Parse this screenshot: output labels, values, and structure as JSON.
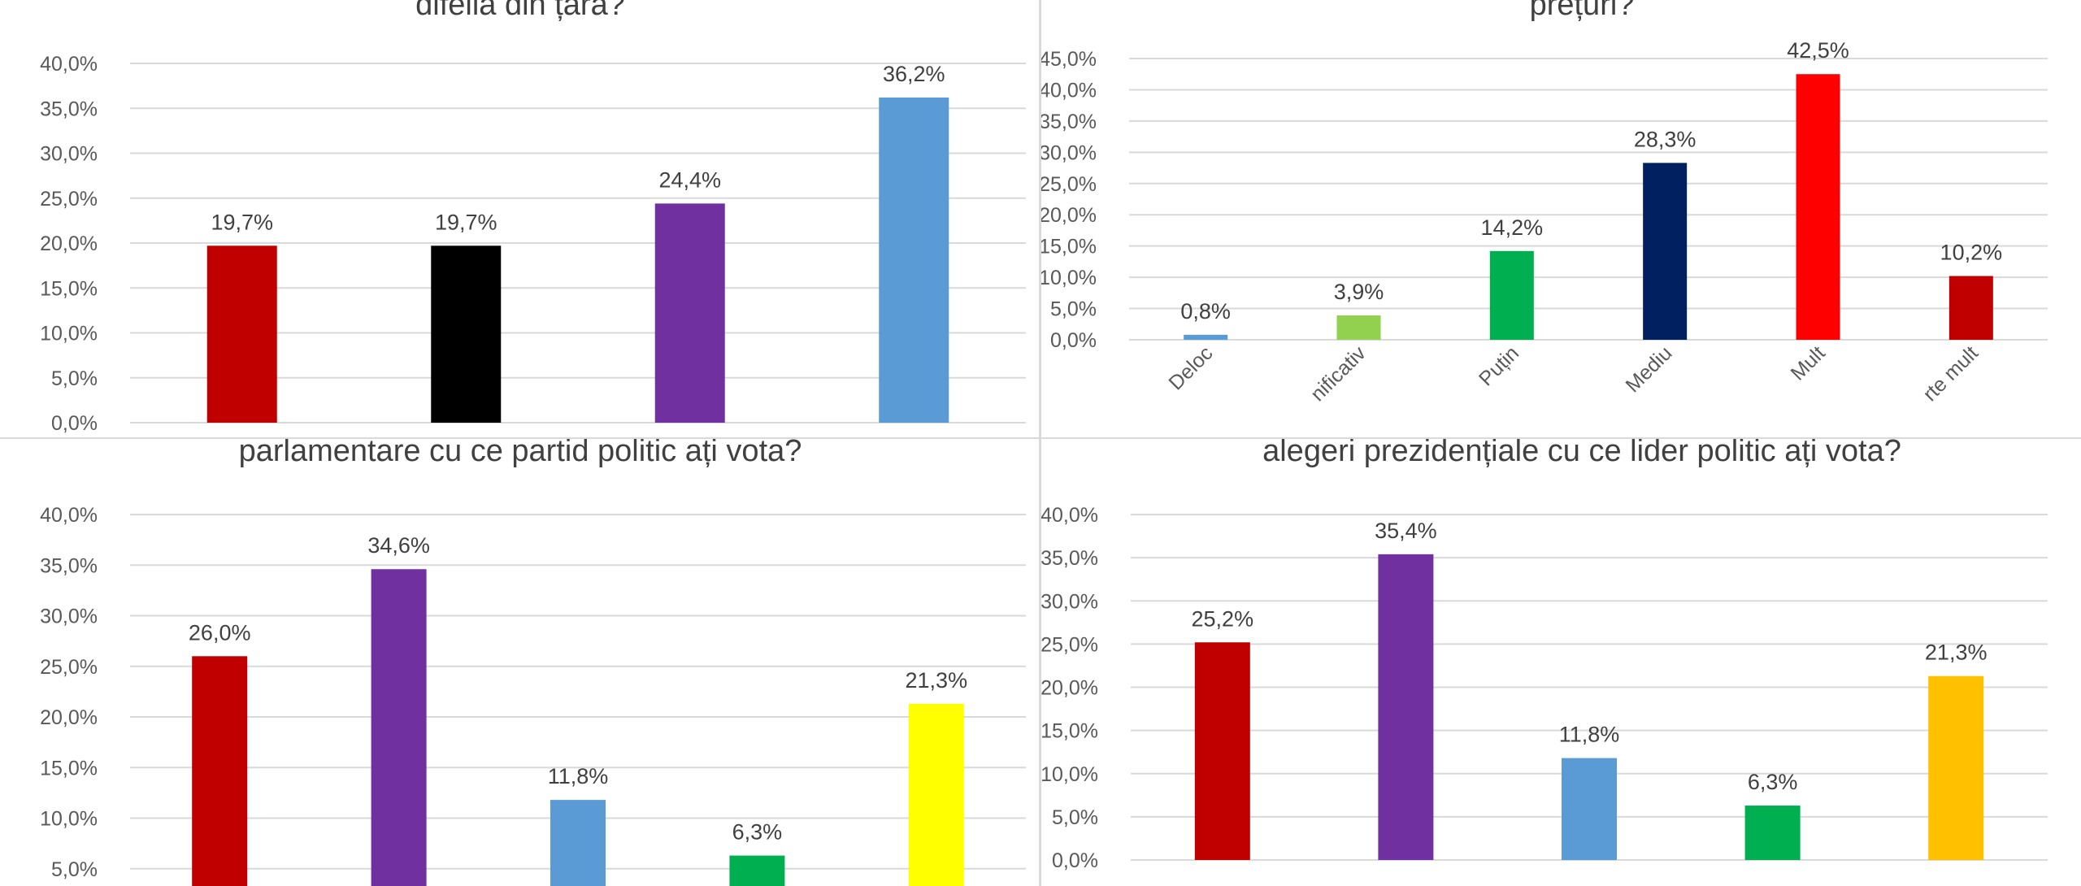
{
  "colors": {
    "grid": "#d9d9d9",
    "tick_text": "#595959",
    "label_text": "#404040",
    "title_text": "#404040"
  },
  "chart_data": [
    {
      "type": "bar",
      "title": "difelia din țara?",
      "categories": [
        "",
        "",
        "",
        ""
      ],
      "values": [
        19.7,
        19.7,
        24.4,
        36.2
      ],
      "value_labels": [
        "19,7%",
        "19,7%",
        "24,4%",
        "36,2%"
      ],
      "bar_colors": [
        "#c00000",
        "#000000",
        "#7030a0",
        "#5b9bd5"
      ],
      "ylim": [
        0,
        40
      ],
      "yticks": [
        0,
        5,
        10,
        15,
        20,
        25,
        30,
        35,
        40
      ],
      "ytick_labels": [
        "0,0%",
        "5,0%",
        "10,0%",
        "15,0%",
        "20,0%",
        "25,0%",
        "30,0%",
        "35,0%",
        "40,0%"
      ],
      "grid": true,
      "legend": "none"
    },
    {
      "type": "bar",
      "title": "prețuri?",
      "categories": [
        "Deloc",
        "nificativ",
        "Puțin",
        "Mediu",
        "Mult",
        "rte mult"
      ],
      "values": [
        0.8,
        3.9,
        14.2,
        28.3,
        42.5,
        10.2
      ],
      "value_labels": [
        "0,8%",
        "3,9%",
        "14,2%",
        "28,3%",
        "42,5%",
        "10,2%"
      ],
      "bar_colors": [
        "#5b9bd5",
        "#92d050",
        "#00b050",
        "#002060",
        "#ff0000",
        "#c00000"
      ],
      "ylim": [
        0,
        45
      ],
      "yticks": [
        0,
        5,
        10,
        15,
        20,
        25,
        30,
        35,
        40,
        45
      ],
      "ytick_labels": [
        "0,0%",
        "5,0%",
        "10,0%",
        "15,0%",
        "20,0%",
        "25,0%",
        "30,0%",
        "35,0%",
        "40,0%",
        "45,0%"
      ],
      "grid": true,
      "legend": "none"
    },
    {
      "type": "bar",
      "title": "parlamentare cu ce partid politic ați vota?",
      "categories": [
        "",
        "",
        "",
        "",
        ""
      ],
      "values": [
        26.0,
        34.6,
        11.8,
        6.3,
        21.3
      ],
      "value_labels": [
        "26,0%",
        "34,6%",
        "11,8%",
        "6,3%",
        "21,3%"
      ],
      "bar_colors": [
        "#c00000",
        "#7030a0",
        "#5b9bd5",
        "#00b050",
        "#ffff00"
      ],
      "ylim": [
        0,
        40
      ],
      "yticks": [
        5,
        10,
        15,
        20,
        25,
        30,
        35,
        40
      ],
      "ytick_labels": [
        "5,0%",
        "10,0%",
        "15,0%",
        "20,0%",
        "25,0%",
        "30,0%",
        "35,0%",
        "40,0%"
      ],
      "grid": true,
      "legend": "none"
    },
    {
      "type": "bar",
      "title": "alegeri prezidențiale cu ce lider  politic ați vota?",
      "categories": [
        "",
        "",
        "",
        "",
        ""
      ],
      "values": [
        25.2,
        35.4,
        11.8,
        6.3,
        21.3
      ],
      "value_labels": [
        "25,2%",
        "35,4%",
        "11,8%",
        "6,3%",
        "21,3%"
      ],
      "bar_colors": [
        "#c00000",
        "#7030a0",
        "#5b9bd5",
        "#00b050",
        "#ffc000"
      ],
      "ylim": [
        0,
        40
      ],
      "yticks": [
        0,
        5,
        10,
        15,
        20,
        25,
        30,
        35,
        40
      ],
      "ytick_labels": [
        "0,0%",
        "5,0%",
        "10,0%",
        "15,0%",
        "20,0%",
        "25,0%",
        "30,0%",
        "35,0%",
        "40,0%"
      ],
      "grid": true,
      "legend": "none"
    }
  ]
}
